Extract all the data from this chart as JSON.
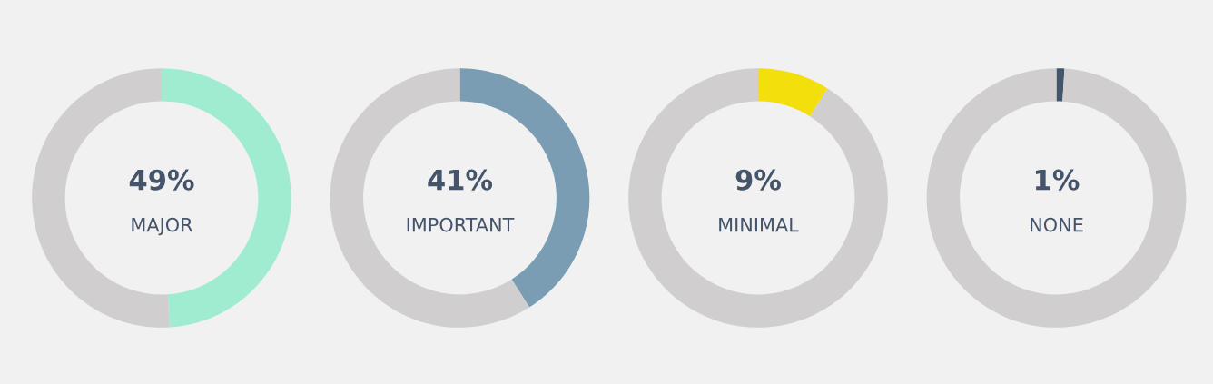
{
  "chart_data": [
    {
      "type": "donut",
      "title": "MAJOR",
      "categories": [
        null,
        null
      ],
      "values": [
        49,
        51
      ],
      "colors": [
        "#a0ecd0",
        "#d0cece"
      ],
      "value_labels": [
        "49%",
        null
      ]
    },
    {
      "type": "donut",
      "title": "IMPORTANT",
      "categories": [
        null,
        null
      ],
      "values": [
        41,
        59
      ],
      "colors": [
        "#7b9db3",
        "#d0cece"
      ],
      "value_labels": [
        "41%",
        null
      ]
    },
    {
      "type": "donut",
      "title": "MINIMAL",
      "categories": [
        null,
        null
      ],
      "values": [
        9,
        91
      ],
      "colors": [
        "#f2df0c",
        "#d0cece"
      ],
      "value_labels": [
        "9%",
        null
      ]
    },
    {
      "type": "donut",
      "title": "NONE",
      "categories": [
        null,
        null
      ],
      "values": [
        1,
        99
      ],
      "colors": [
        "#44546a",
        "#d0cece"
      ],
      "value_labels": [
        "1%",
        null
      ]
    }
  ]
}
